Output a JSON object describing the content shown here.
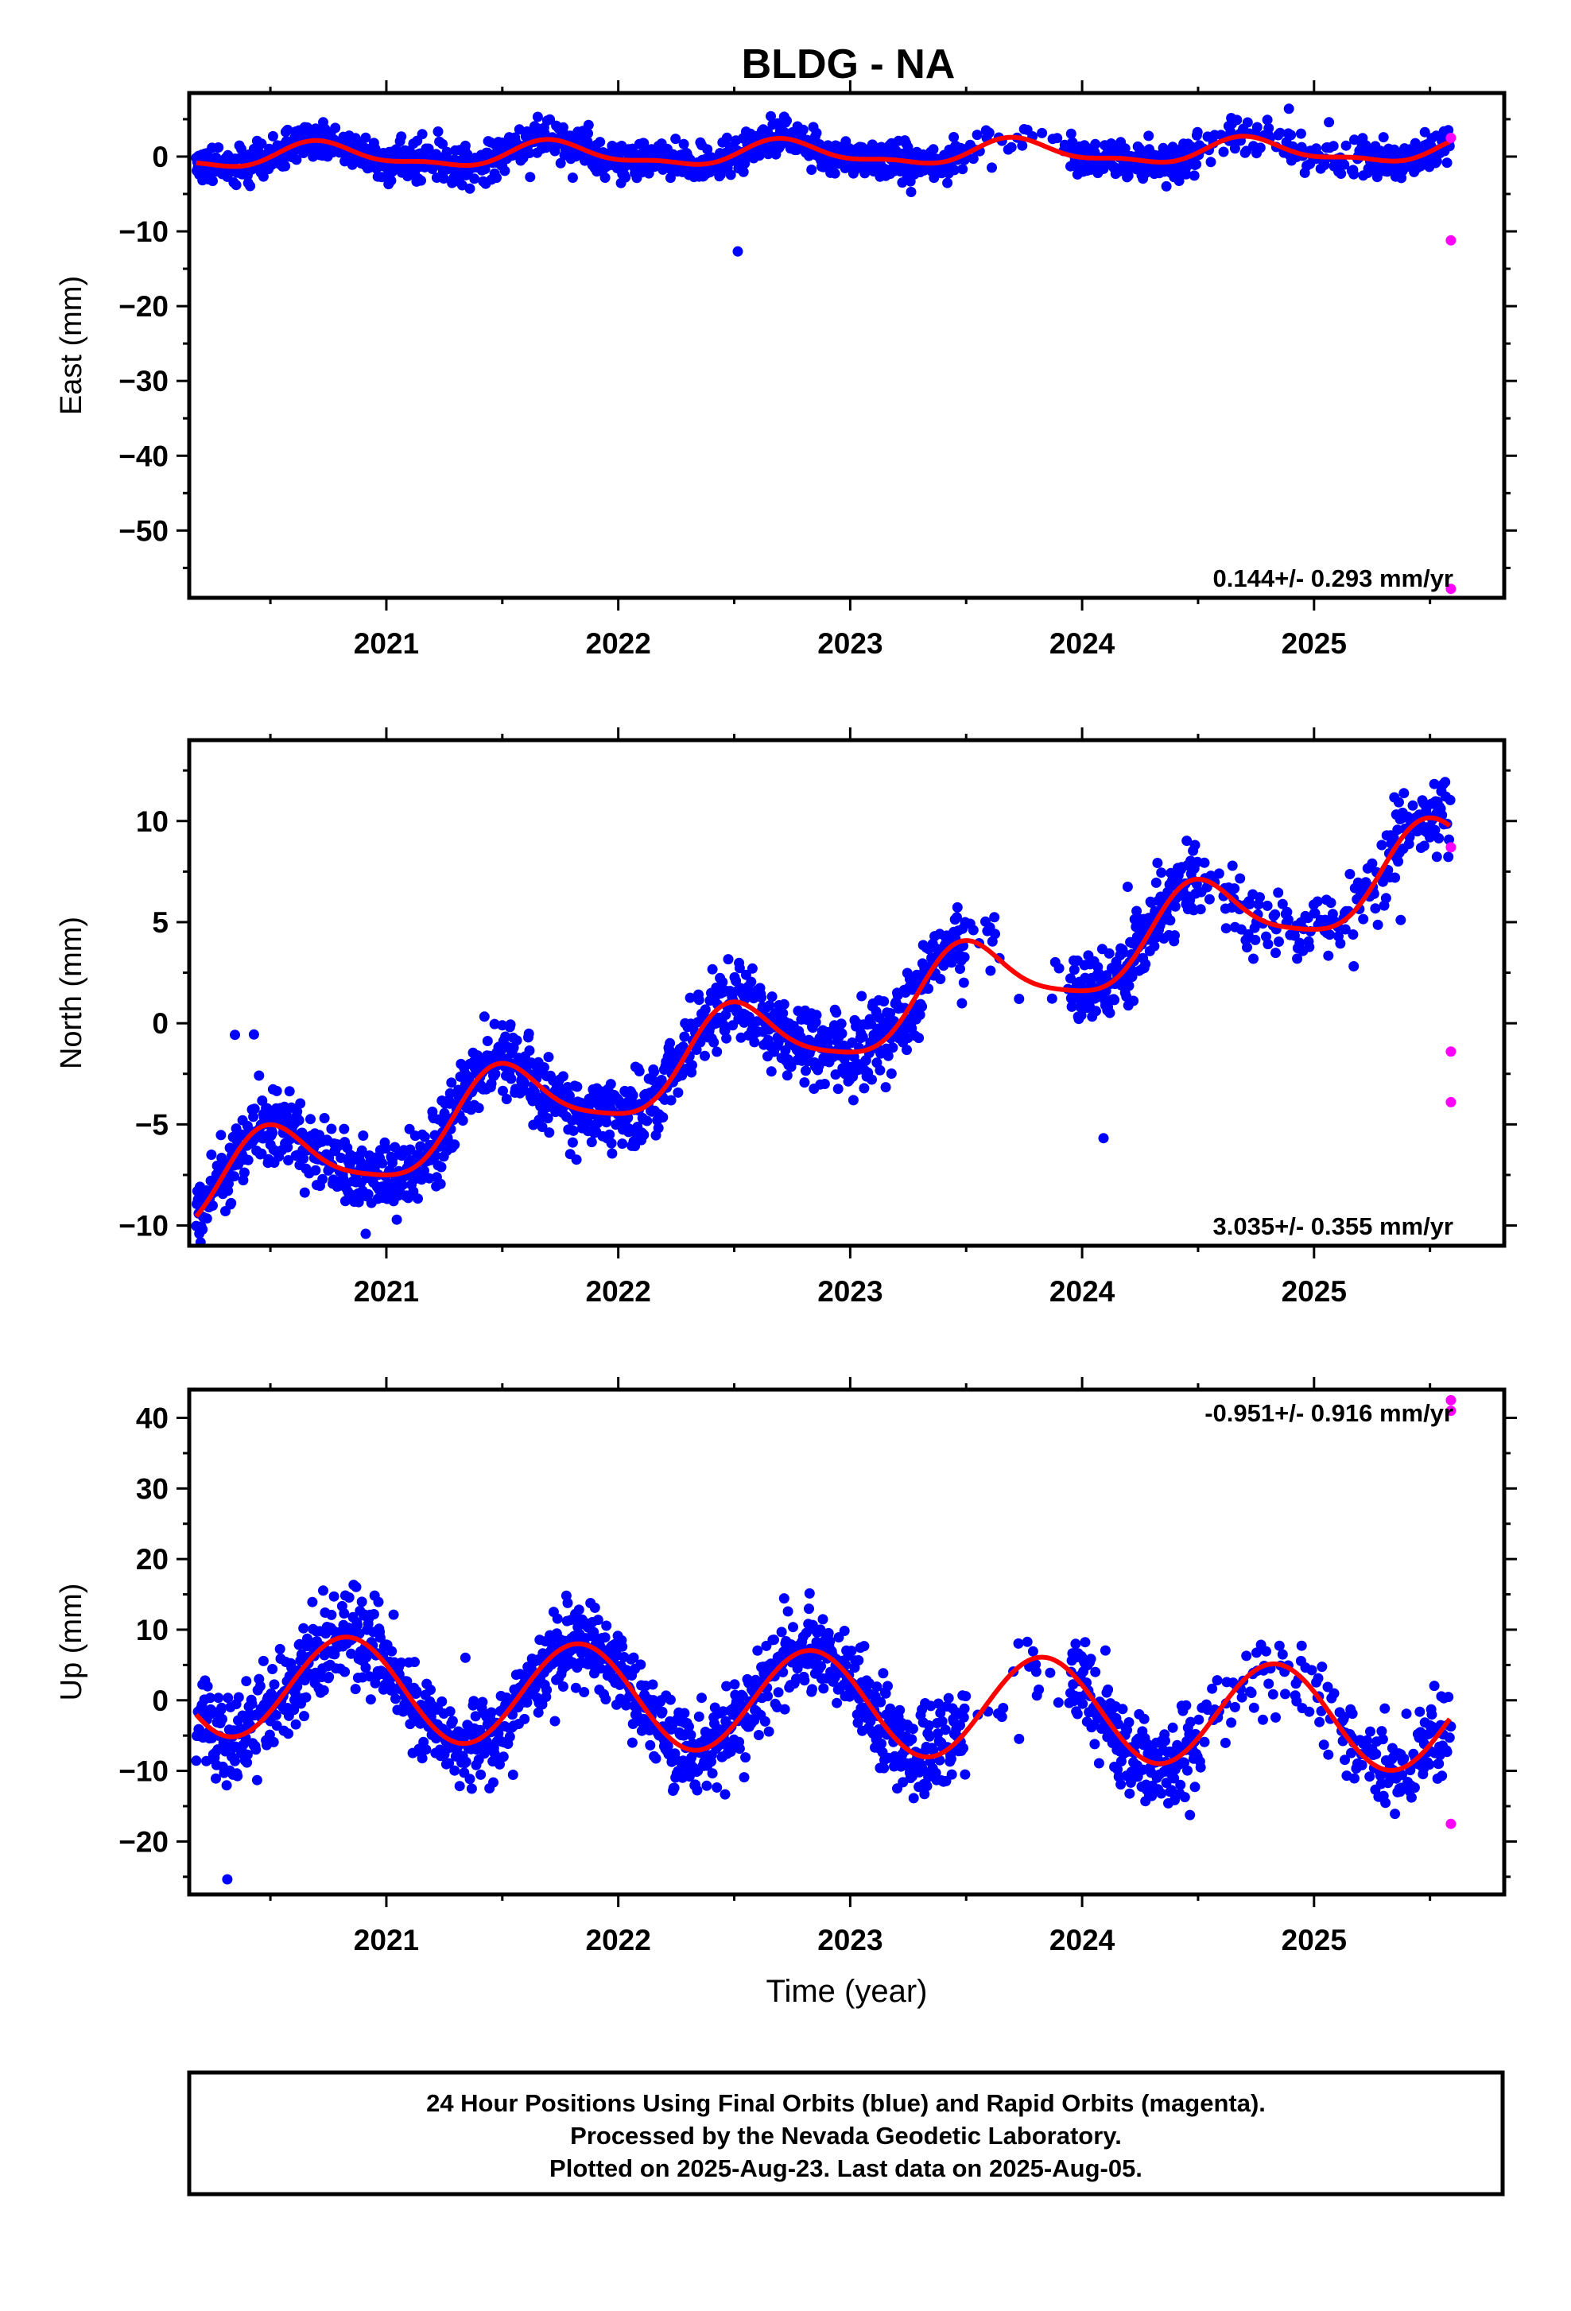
{
  "title": "BLDG - NA",
  "colors": {
    "final": "#0000ff",
    "rapid": "#ff00ff",
    "fit": "#ff0000",
    "frame": "#000000"
  },
  "footer": {
    "line1": "24 Hour Positions Using Final Orbits (blue) and Rapid Orbits (magenta).",
    "line2": "Processed by the Nevada Geodetic Laboratory.",
    "line3": "Plotted on 2025-Aug-23. Last data on 2025-Aug-05."
  },
  "chart_data": [
    {
      "type": "scatter",
      "component": "east",
      "ylabel": "East (mm)",
      "xlabel": "",
      "xlim": [
        2020.15,
        2025.82
      ],
      "ylim": [
        -59,
        8.5
      ],
      "yticks": [
        0,
        -10,
        -20,
        -30,
        -40,
        -50
      ],
      "xticks": [
        2021,
        2022,
        2023,
        2024,
        2025
      ],
      "rate_label": "0.144+/- 0.293 mm/yr",
      "rate_position": "bottom-right",
      "noise_mm": 1.2,
      "fit": {
        "offset": 0.0,
        "rate": 0.144,
        "annual_amp": 1.5,
        "annual_phase_year": 2020.72,
        "semiannual_amp": 0.6,
        "semiannual_phase_year": 2020.68
      },
      "rapid_points": [
        {
          "x": 2025.59,
          "y": 2.5
        },
        {
          "x": 2025.59,
          "y": -11.2
        },
        {
          "x": 2025.59,
          "y": -57.8
        }
      ]
    },
    {
      "type": "scatter",
      "component": "north",
      "ylabel": "North (mm)",
      "xlabel": "",
      "xlim": [
        2020.15,
        2025.82
      ],
      "ylim": [
        -11,
        14
      ],
      "yticks": [
        10,
        5,
        0,
        -5,
        -10
      ],
      "xticks": [
        2021,
        2022,
        2023,
        2024,
        2025
      ],
      "rate_label": "3.035+/- 0.355 mm/yr",
      "rate_position": "bottom-right",
      "noise_mm": 0.9,
      "fit": {
        "offset": -8.4,
        "rate": 3.035,
        "annual_amp": 2.0,
        "annual_phase_year": 2020.5,
        "semiannual_amp": 0.4,
        "semiannual_phase_year": 2020.45
      },
      "rapid_points": [
        {
          "x": 2025.59,
          "y": 8.7
        },
        {
          "x": 2025.59,
          "y": -1.4
        },
        {
          "x": 2025.59,
          "y": -3.9
        }
      ]
    },
    {
      "type": "scatter",
      "component": "up",
      "ylabel": "Up (mm)",
      "xlabel": "Time (year)",
      "xlim": [
        2020.15,
        2025.82
      ],
      "ylim": [
        -27.5,
        44
      ],
      "yticks": [
        40,
        30,
        20,
        10,
        0,
        -10,
        -20
      ],
      "xticks": [
        2021,
        2022,
        2023,
        2024,
        2025
      ],
      "rate_label": "-0.951+/- 0.916 mm/yr",
      "rate_position": "top-right",
      "noise_mm": 3.2,
      "fit": {
        "offset": 2.3,
        "rate": -0.951,
        "annual_amp": 7.3,
        "annual_phase_year": 2020.83,
        "semiannual_amp": 0.0,
        "semiannual_phase_year": 2020.5
      },
      "rapid_points": [
        {
          "x": 2025.59,
          "y": 42.5
        },
        {
          "x": 2025.59,
          "y": 41.0
        },
        {
          "x": 2025.59,
          "y": -17.5
        }
      ]
    }
  ]
}
